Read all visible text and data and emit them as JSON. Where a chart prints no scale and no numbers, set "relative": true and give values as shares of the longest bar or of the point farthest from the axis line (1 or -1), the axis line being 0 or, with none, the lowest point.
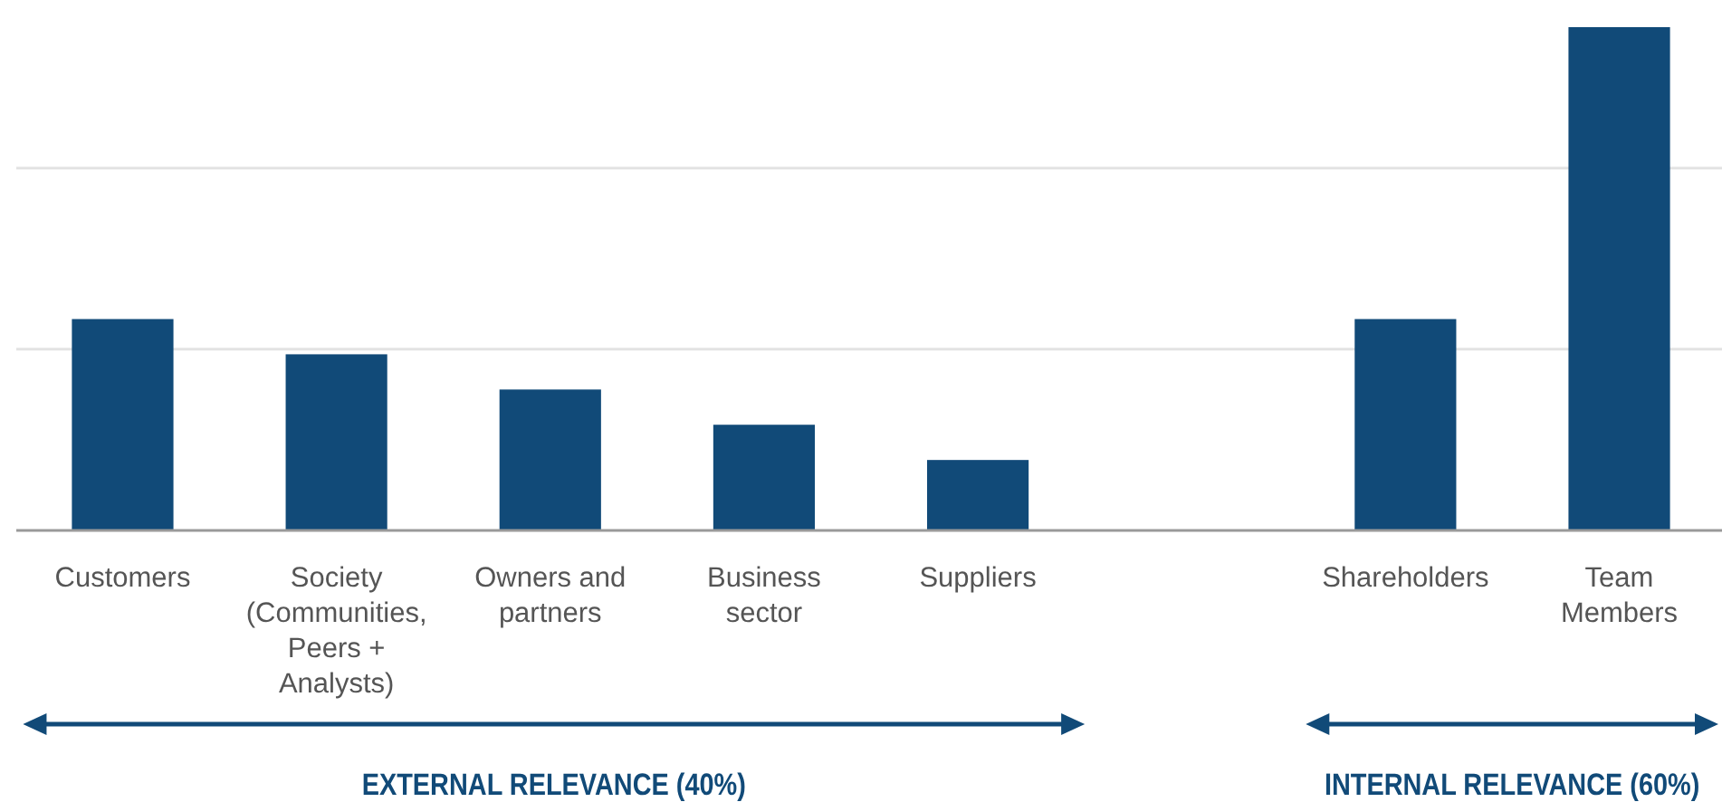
{
  "chart_data": {
    "type": "bar",
    "relative": true,
    "color": "#114a78",
    "ref_lines": [
      {
        "axis": "y",
        "value": 0.36,
        "color": "#e3e3e3"
      },
      {
        "axis": "y",
        "value": 0.72,
        "color": "#e3e3e3"
      }
    ],
    "categories": [
      "Customers",
      "Society (Communities, Peers + Analysts)",
      "Owners and partners",
      "Business sector",
      "Suppliers",
      null,
      "Shareholders",
      "Team Members"
    ],
    "values": [
      0.42,
      0.35,
      0.28,
      0.21,
      0.14,
      null,
      0.42,
      1
    ],
    "annotations": [
      "EXTERNAL RELEVANCE (40%)",
      "INTERNAL RELEVANCE (60%)"
    ]
  }
}
